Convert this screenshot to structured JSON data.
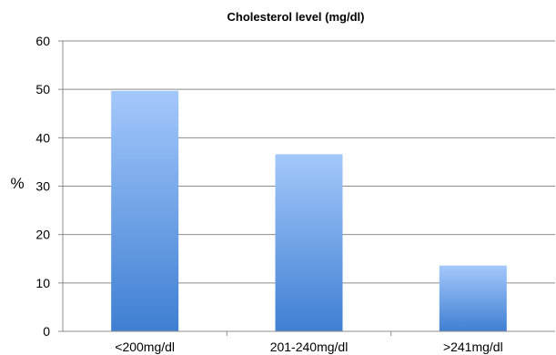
{
  "chart_data": {
    "type": "bar",
    "title": "Cholesterol level (mg/dl)",
    "xlabel": "",
    "ylabel": "%",
    "categories": [
      "<200mg/dl",
      "201-240mg/dl",
      ">241mg/dl"
    ],
    "values": [
      49.7,
      36.6,
      13.6
    ],
    "ylim": [
      0,
      60
    ],
    "yticks": [
      "0",
      "10",
      "20",
      "30",
      "40",
      "50",
      "60"
    ],
    "grid": true,
    "legend": "none",
    "bar_color_top": "#a4c8fb",
    "bar_color_bottom": "#3f7fd2"
  }
}
